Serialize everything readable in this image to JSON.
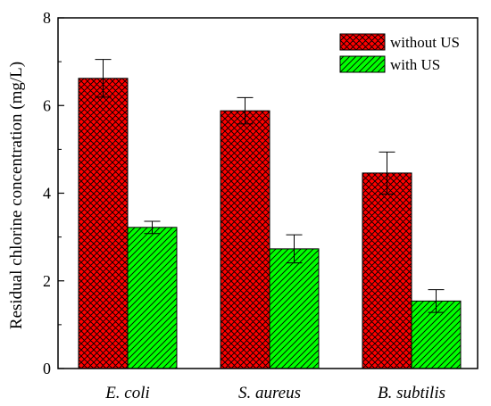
{
  "chart_data": {
    "type": "bar",
    "categories": [
      "E. coli",
      "S. aureus",
      "B. subtilis"
    ],
    "series": [
      {
        "name": "without US",
        "values": [
          6.62,
          5.88,
          4.46
        ],
        "errors": [
          0.43,
          0.3,
          0.48
        ],
        "color": "#ff0000",
        "pattern": "crosshatch"
      },
      {
        "name": "with US",
        "values": [
          3.22,
          2.73,
          1.54
        ],
        "errors": [
          0.14,
          0.32,
          0.26
        ],
        "color": "#00ff00",
        "pattern": "diagonal"
      }
    ],
    "title": "",
    "xlabel": "",
    "ylabel": "Residual chlorine concentration (mg/L)",
    "ylim": [
      0,
      8
    ],
    "yticks": [
      "0",
      "2",
      "4",
      "6",
      "8"
    ],
    "grid": false,
    "legend_position": "top-right"
  }
}
